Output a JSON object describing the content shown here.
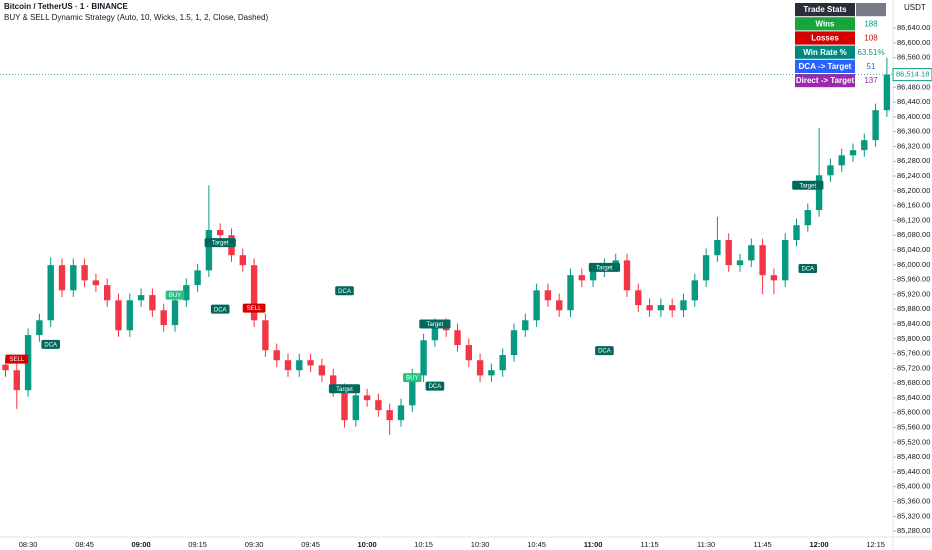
{
  "chart_data": {
    "type": "candlestick",
    "title": "Bitcoin / TetherUS · 1 · BINANCE",
    "subtitle": "BUY & SELL Dynamic Strategy (Auto, 10, Wicks, 1.5, 1, 2, Close, Dashed)",
    "axis_unit": "USDT",
    "up_color": "#089981",
    "down_color": "#f23645",
    "grid": false,
    "categories": [
      null,
      null,
      "08:30",
      null,
      null,
      null,
      null,
      "08:45",
      null,
      null,
      null,
      null,
      "09:00",
      null,
      null,
      null,
      null,
      "09:15",
      null,
      null,
      null,
      null,
      "09:30",
      null,
      null,
      null,
      null,
      "09:45",
      null,
      null,
      null,
      null,
      "10:00",
      null,
      null,
      null,
      null,
      "10:15",
      null,
      null,
      null,
      null,
      "10:30",
      null,
      null,
      null,
      null,
      "10:45",
      null,
      null,
      null,
      null,
      "11:00",
      null,
      null,
      null,
      null,
      "11:15",
      null,
      null,
      null,
      null,
      "11:30",
      null,
      null,
      null,
      null,
      "11:45",
      null,
      null,
      null,
      null,
      "12:00",
      null,
      null,
      null,
      null,
      "12:15",
      null
    ],
    "open": [
      85730,
      85715,
      85661,
      85810,
      85850,
      85999,
      85931,
      85999,
      85958,
      85945,
      85904,
      85823,
      85904,
      85918,
      85877,
      85837,
      85904,
      85945,
      85985,
      86094,
      86080,
      86026,
      85999,
      85850,
      85769,
      85742,
      85715,
      85742,
      85728,
      85701,
      85661,
      85580,
      85647,
      85634,
      85607,
      85580,
      85620,
      85701,
      85796,
      85837,
      85823,
      85783,
      85742,
      85701,
      85715,
      85756,
      85823,
      85850,
      85931,
      85904,
      85877,
      85972,
      85958,
      85985,
      85999,
      86012,
      85931,
      85891,
      85877,
      85891,
      85877,
      85904,
      85958,
      86026,
      86067,
      85999,
      86012,
      86053,
      85972,
      85958,
      86067,
      86107,
      86148,
      86242,
      86269,
      86296,
      86310,
      86337,
      86418
    ],
    "high": [
      85748,
      85733,
      85828,
      85868,
      86020,
      86017,
      86017,
      86017,
      85976,
      85963,
      85922,
      85922,
      85936,
      85936,
      85895,
      85922,
      85963,
      86003,
      86215,
      86112,
      86098,
      86044,
      86017,
      85868,
      85787,
      85760,
      85760,
      85760,
      85746,
      85719,
      85679,
      85665,
      85665,
      85652,
      85625,
      85638,
      85719,
      85814,
      85855,
      85855,
      85841,
      85801,
      85760,
      85733,
      85774,
      85841,
      85868,
      85949,
      85949,
      85922,
      85990,
      85990,
      86003,
      86017,
      86030,
      86030,
      85949,
      85909,
      85909,
      85909,
      85922,
      85976,
      86044,
      86130,
      86085,
      86030,
      86071,
      86071,
      85990,
      86085,
      86125,
      86166,
      86370,
      86287,
      86314,
      86328,
      86355,
      86436,
      86560
    ],
    "low": [
      85697,
      85610,
      85643,
      85792,
      85832,
      85913,
      85913,
      85940,
      85927,
      85886,
      85805,
      85805,
      85886,
      85859,
      85819,
      85819,
      85886,
      85927,
      85967,
      86062,
      86008,
      85981,
      85832,
      85751,
      85724,
      85697,
      85697,
      85710,
      85683,
      85643,
      85560,
      85562,
      85616,
      85589,
      85540,
      85562,
      85602,
      85683,
      85778,
      85805,
      85765,
      85724,
      85683,
      85683,
      85697,
      85738,
      85805,
      85832,
      85886,
      85859,
      85859,
      85940,
      85940,
      85967,
      85981,
      85913,
      85873,
      85859,
      85859,
      85859,
      85859,
      85886,
      85940,
      86008,
      85981,
      85981,
      85994,
      85920,
      85920,
      85940,
      86049,
      86089,
      86130,
      86224,
      86251,
      86278,
      86292,
      86319,
      86400
    ],
    "close": [
      85715,
      85661,
      85810,
      85850,
      85999,
      85931,
      85999,
      85958,
      85945,
      85904,
      85823,
      85904,
      85918,
      85877,
      85837,
      85904,
      85945,
      85985,
      86094,
      86080,
      86026,
      85999,
      85850,
      85769,
      85742,
      85715,
      85742,
      85728,
      85701,
      85661,
      85580,
      85647,
      85634,
      85607,
      85580,
      85620,
      85701,
      85796,
      85837,
      85823,
      85783,
      85742,
      85701,
      85715,
      85756,
      85823,
      85850,
      85931,
      85904,
      85877,
      85972,
      85958,
      85985,
      85999,
      86012,
      85931,
      85891,
      85877,
      85891,
      85877,
      85904,
      85958,
      86026,
      86067,
      85999,
      86012,
      86053,
      85972,
      85958,
      86067,
      86107,
      86148,
      86242,
      86269,
      86296,
      86310,
      86337,
      86418,
      86514.18
    ],
    "last_price": {
      "value": 86514.18,
      "label": "86,514.18"
    },
    "ylim": [
      85264,
      86716
    ],
    "yticks": [
      {
        "value": 85280,
        "label": "85,280.00"
      },
      {
        "value": 85320,
        "label": "85,320.00"
      },
      {
        "value": 85360,
        "label": "85,360.00"
      },
      {
        "value": 85400,
        "label": "85,400.00"
      },
      {
        "value": 85440,
        "label": "85,440.00"
      },
      {
        "value": 85480,
        "label": "85,480.00"
      },
      {
        "value": 85520,
        "label": "85,520.00"
      },
      {
        "value": 85560,
        "label": "85,560.00"
      },
      {
        "value": 85600,
        "label": "85,600.00"
      },
      {
        "value": 85640,
        "label": "85,640.00"
      },
      {
        "value": 85680,
        "label": "85,680.00"
      },
      {
        "value": 85720,
        "label": "85,720.00"
      },
      {
        "value": 85760,
        "label": "85,760.00"
      },
      {
        "value": 85800,
        "label": "85,800.00"
      },
      {
        "value": 85840,
        "label": "85,840.00"
      },
      {
        "value": 85880,
        "label": "85,880.00"
      },
      {
        "value": 85920,
        "label": "85,920.00"
      },
      {
        "value": 85960,
        "label": "85,960.00"
      },
      {
        "value": 86000,
        "label": "86,000.00"
      },
      {
        "value": 86040,
        "label": "86,040.00"
      },
      {
        "value": 86080,
        "label": "86,080.00"
      },
      {
        "value": 86120,
        "label": "86,120.00"
      },
      {
        "value": 86160,
        "label": "86,160.00"
      },
      {
        "value": 86200,
        "label": "86,200.00"
      },
      {
        "value": 86240,
        "label": "86,240.00"
      },
      {
        "value": 86280,
        "label": "86,280.00"
      },
      {
        "value": 86320,
        "label": "86,320.00"
      },
      {
        "value": 86360,
        "label": "86,360.00"
      },
      {
        "value": 86400,
        "label": "86,400.00"
      },
      {
        "value": 86440,
        "label": "86,440.00"
      },
      {
        "value": 86480,
        "label": "86,480.00"
      },
      {
        "value": 86520,
        "label": "86,520.00"
      },
      {
        "value": 86560,
        "label": "86,560.00"
      },
      {
        "value": 86600,
        "label": "86,600.00"
      },
      {
        "value": 86640,
        "label": "86,640.00"
      }
    ],
    "annotations": [
      {
        "text": "SELL",
        "x": 1,
        "y": 85745,
        "color": "#d50000"
      },
      {
        "text": "DCA",
        "x": 4,
        "y": 85785,
        "color": "#00695c"
      },
      {
        "text": "BUY",
        "x": 15,
        "y": 85918,
        "color": "#26c281"
      },
      {
        "text": "Target",
        "x": 19,
        "y": 86060,
        "color": "#00695c"
      },
      {
        "text": "DCA",
        "x": 19,
        "y": 85880,
        "color": "#00695c"
      },
      {
        "text": "SELL",
        "x": 22,
        "y": 85883,
        "color": "#d50000"
      },
      {
        "text": "DCA",
        "x": 30,
        "y": 85930,
        "color": "#00695c"
      },
      {
        "text": "Target",
        "x": 30,
        "y": 85665,
        "color": "#00695c"
      },
      {
        "text": "BUY",
        "x": 36,
        "y": 85695,
        "color": "#26c281"
      },
      {
        "text": "DCA",
        "x": 38,
        "y": 85672,
        "color": "#00695c"
      },
      {
        "text": "Target",
        "x": 38,
        "y": 85840,
        "color": "#00695c"
      },
      {
        "text": "DCA",
        "x": 53,
        "y": 85768,
        "color": "#00695c"
      },
      {
        "text": "Target",
        "x": 53,
        "y": 85993,
        "color": "#00695c"
      },
      {
        "text": "DCA",
        "x": 71,
        "y": 85990,
        "color": "#00695c"
      },
      {
        "text": "Target",
        "x": 71,
        "y": 86215,
        "color": "#00695c"
      }
    ]
  },
  "table": {
    "header": "Trade Stats",
    "rows": [
      {
        "label": "Wins",
        "value": "188",
        "bg": "#17a43b",
        "color": "#089981"
      },
      {
        "label": "Losses",
        "value": "108",
        "bg": "#d50000",
        "color": "#d50000"
      },
      {
        "label": "Win Rate %",
        "value": "63.51%",
        "bg": "#00897b",
        "color": "#089981"
      },
      {
        "label": "DCA -> Target",
        "value": "51",
        "bg": "#2962ff",
        "color": "#2962ff"
      },
      {
        "label": "Direct -> Target",
        "value": "137",
        "bg": "#9c27b0",
        "color": "#9c27b0"
      }
    ]
  }
}
